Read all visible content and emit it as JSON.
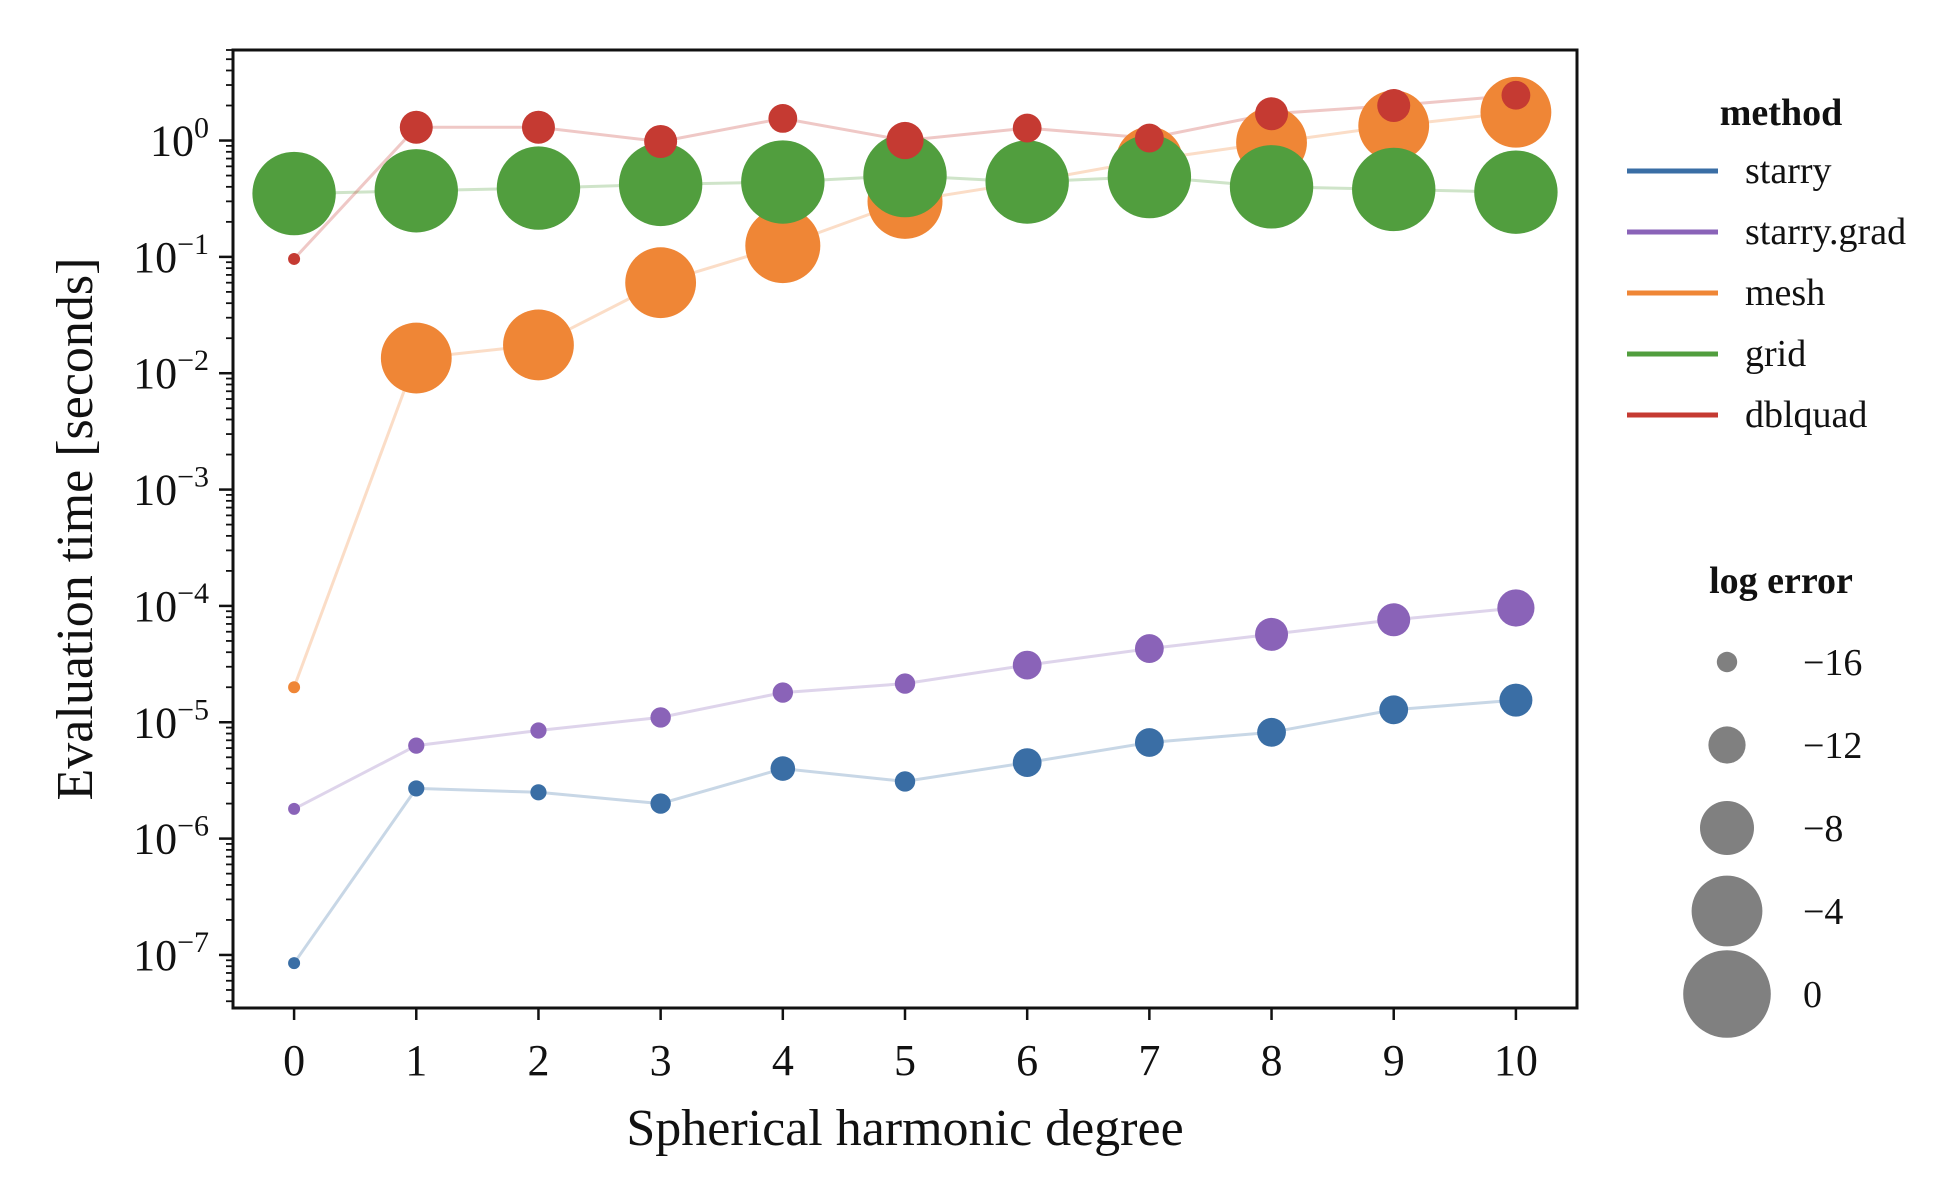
{
  "chart_data": {
    "type": "scatter",
    "xlabel": "Spherical harmonic degree",
    "ylabel": "Evaluation time [seconds]",
    "y_scale": "log",
    "xlim": [
      -0.5,
      10.5
    ],
    "ylim": [
      3.5e-08,
      6
    ],
    "x": [
      0,
      1,
      2,
      3,
      4,
      5,
      6,
      7,
      8,
      9,
      10
    ],
    "x_ticks": [
      "0",
      "1",
      "2",
      "3",
      "4",
      "5",
      "6",
      "7",
      "8",
      "9",
      "10"
    ],
    "y_ticks": [
      {
        "base": "10",
        "exp": "0",
        "value": 1
      },
      {
        "base": "10",
        "exp": "−1",
        "value": 0.1
      },
      {
        "base": "10",
        "exp": "−2",
        "value": 0.01
      },
      {
        "base": "10",
        "exp": "−3",
        "value": 0.001
      },
      {
        "base": "10",
        "exp": "−4",
        "value": 0.0001
      },
      {
        "base": "10",
        "exp": "−5",
        "value": 1e-05
      },
      {
        "base": "10",
        "exp": "−6",
        "value": 1e-06
      },
      {
        "base": "10",
        "exp": "−7",
        "value": 1e-07
      }
    ],
    "legend_method_title": "method",
    "legend_size_title": "log error",
    "legend_placement": "right, outside plot",
    "grid": false,
    "series": [
      {
        "name": "starry",
        "color": "#3a6ea5",
        "time": [
          8.5e-08,
          2.7e-06,
          2.5e-06,
          2e-06,
          4e-06,
          3.1e-06,
          4.5e-06,
          6.7e-06,
          8.2e-06,
          1.28e-05,
          1.55e-05
        ],
        "log_error": [
          -18,
          -17,
          -17,
          -16,
          -15,
          -16,
          -14,
          -14,
          -14,
          -14,
          -13
        ]
      },
      {
        "name": "starry.grad",
        "color": "#8a63b8",
        "time": [
          1.8e-06,
          6.3e-06,
          8.5e-06,
          1.1e-05,
          1.8e-05,
          2.15e-05,
          3.1e-05,
          4.3e-05,
          5.7e-05,
          7.6e-05,
          9.6e-05
        ],
        "log_error": [
          -18,
          -17,
          -17,
          -16,
          -16,
          -16,
          -14,
          -14,
          -13,
          -13,
          -12
        ]
      },
      {
        "name": "mesh",
        "color": "#ef8636",
        "time": [
          2e-05,
          0.0135,
          0.0175,
          0.06,
          0.125,
          0.3,
          0.44,
          0.68,
          0.96,
          1.34,
          1.75
        ],
        "log_error": [
          -18,
          -4,
          -4,
          -4,
          -3,
          -3,
          -4,
          -5,
          -4,
          -4,
          -4
        ]
      },
      {
        "name": "grid",
        "color": "#519e3e",
        "time": [
          0.35,
          0.37,
          0.39,
          0.42,
          0.44,
          0.5,
          0.44,
          0.49,
          0.4,
          0.38,
          0.36
        ],
        "log_error": [
          -1,
          -1,
          -1,
          -1,
          -1,
          -1,
          -1,
          -1,
          -1,
          -1,
          -1
        ]
      },
      {
        "name": "dblquad",
        "color": "#c53a32",
        "time": [
          0.096,
          1.3,
          1.3,
          0.98,
          1.55,
          1.0,
          1.28,
          1.05,
          1.7,
          2.0,
          2.45
        ],
        "log_error": [
          -18,
          -13,
          -13,
          -13,
          -14,
          -12,
          -14,
          -14,
          -13,
          -13,
          -14
        ]
      }
    ],
    "size_legend": [
      {
        "label": "−16",
        "log_error": -16
      },
      {
        "label": "−12",
        "log_error": -12
      },
      {
        "label": "−8",
        "log_error": -8
      },
      {
        "label": "−4",
        "log_error": -4
      },
      {
        "label": "0",
        "log_error": 0
      }
    ],
    "size_legend_color": "#808080"
  }
}
